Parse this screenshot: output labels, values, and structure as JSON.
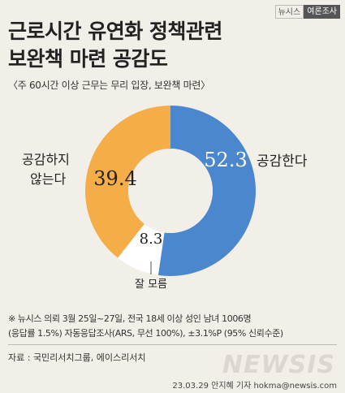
{
  "badge": {
    "brand": "뉴시스",
    "label": "여론조사"
  },
  "title_line1": "근로시간 유연화 정책관련",
  "title_line2": "보완책 마련 공감도",
  "subtitle": "〈주 60시간 이상 근무는 무리 입장, 보완책 마련〉",
  "chart_data": {
    "type": "pie",
    "donut": true,
    "slices": [
      {
        "label": "공감한다",
        "value": 52.3,
        "value_label": "52.3",
        "color": "#4a87cf"
      },
      {
        "label": "잘 모름",
        "value": 8.3,
        "value_label": "8.3",
        "color": "#ffffff"
      },
      {
        "label_line1": "공감하지",
        "label_line2": "않는다",
        "value": 39.4,
        "value_label": "39.4",
        "color": "#f4ad47"
      }
    ]
  },
  "footnote_line1": "※ 뉴시스 의뢰 3월 25일~27일, 전국 18세 이상 성인 남녀 1006명",
  "footnote_line2": "(응답률 1.5%) 자동응답조사(ARS, 무선 100%), ±3.1%P (95% 신뢰수준)",
  "source": "자료 : 국민리서치그룹, 에이스리서치",
  "logo": "NEWSIS",
  "credit": "23.03.29 안지혜 기자 hokma@newsis.com"
}
